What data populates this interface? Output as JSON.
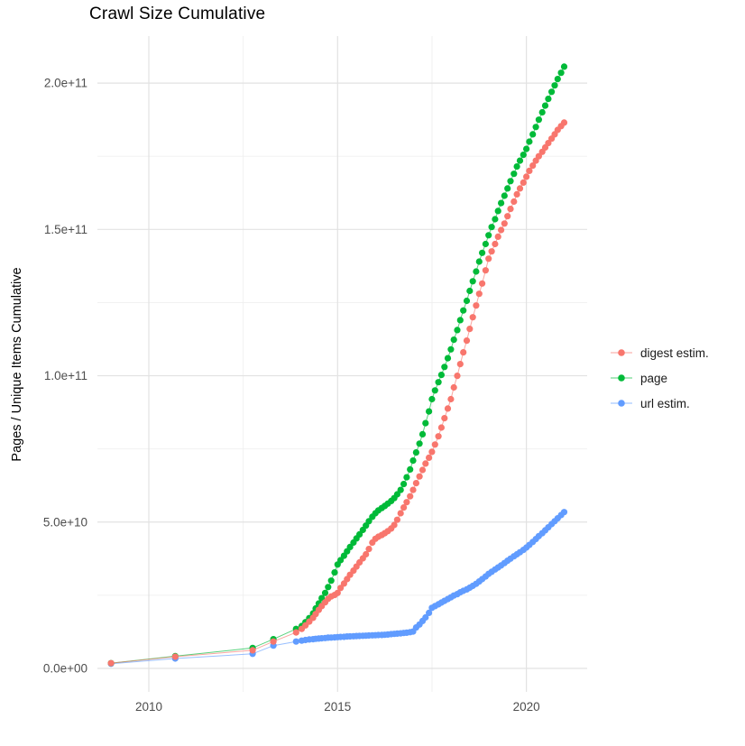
{
  "title": "Crawl Size Cumulative",
  "axes": {
    "y_label": "Pages / Unique Items Cumulative",
    "y_ticks": [
      {
        "label": "0.0e+00",
        "value_e9": 0
      },
      {
        "label": "5.0e+10",
        "value_e9": 50
      },
      {
        "label": "1.0e+11",
        "value_e9": 100
      },
      {
        "label": "1.5e+11",
        "value_e9": 150
      },
      {
        "label": "2.0e+11",
        "value_e9": 200
      }
    ],
    "x_ticks": [
      {
        "label": "2010",
        "value": 2010
      },
      {
        "label": "2015",
        "value": 2015
      },
      {
        "label": "2020",
        "value": 2020
      }
    ]
  },
  "legend": {
    "items": [
      {
        "label": "digest estim.",
        "color": "#F8766D"
      },
      {
        "label": "page",
        "color": "#00BA38"
      },
      {
        "label": "url estim.",
        "color": "#619CFF"
      }
    ]
  },
  "theme": {
    "background": "#FFFFFF",
    "grid_major": "#E2E2E2",
    "grid_minor": "#EFEFEF",
    "tick_label_color": "#4D4D4D",
    "text_color": "#000000"
  },
  "chart_data": {
    "type": "scatter",
    "title": "Crawl Size Cumulative",
    "xlabel": "",
    "ylabel": "Pages / Unique Items Cumulative",
    "value_unit": "1e9 (billions); y values below are in units of 1e9",
    "xlim": [
      2008.64,
      2021.6
    ],
    "ylim_e9": [
      -8,
      216
    ],
    "grid": true,
    "legend_position": "right",
    "series": [
      {
        "name": "digest estim.",
        "color": "#F8766D",
        "points": [
          [
            2009.0,
            1.8
          ],
          [
            2010.7,
            4.0
          ],
          [
            2012.75,
            6.2
          ],
          [
            2013.3,
            9.2
          ],
          [
            2013.9,
            12.3
          ],
          [
            2014.05,
            13.5
          ],
          [
            2014.15,
            14.7
          ],
          [
            2014.25,
            16.0
          ],
          [
            2014.35,
            17.3
          ],
          [
            2014.42,
            18.6
          ],
          [
            2014.5,
            20.0
          ],
          [
            2014.58,
            21.3
          ],
          [
            2014.67,
            22.6
          ],
          [
            2014.75,
            23.8
          ],
          [
            2014.83,
            24.6
          ],
          [
            2014.92,
            25.1
          ],
          [
            2015.0,
            25.8
          ],
          [
            2015.08,
            27.5
          ],
          [
            2015.17,
            29.0
          ],
          [
            2015.25,
            30.5
          ],
          [
            2015.33,
            32.0
          ],
          [
            2015.42,
            33.4
          ],
          [
            2015.5,
            34.8
          ],
          [
            2015.58,
            36.2
          ],
          [
            2015.67,
            37.6
          ],
          [
            2015.75,
            39.0
          ],
          [
            2015.83,
            40.8
          ],
          [
            2015.92,
            43.0
          ],
          [
            2016.0,
            44.3
          ],
          [
            2016.08,
            45.0
          ],
          [
            2016.17,
            45.6
          ],
          [
            2016.25,
            46.2
          ],
          [
            2016.33,
            46.9
          ],
          [
            2016.42,
            47.8
          ],
          [
            2016.5,
            49.0
          ],
          [
            2016.58,
            50.8
          ],
          [
            2016.67,
            53.0
          ],
          [
            2016.75,
            55.0
          ],
          [
            2016.83,
            56.8
          ],
          [
            2016.92,
            58.8
          ],
          [
            2017.0,
            61.0
          ],
          [
            2017.08,
            63.3
          ],
          [
            2017.17,
            65.6
          ],
          [
            2017.25,
            67.8
          ],
          [
            2017.33,
            70.0
          ],
          [
            2017.42,
            72.0
          ],
          [
            2017.5,
            74.0
          ],
          [
            2017.58,
            76.5
          ],
          [
            2017.67,
            79.3
          ],
          [
            2017.75,
            82.3
          ],
          [
            2017.83,
            85.5
          ],
          [
            2017.92,
            88.8
          ],
          [
            2018.0,
            92.0
          ],
          [
            2018.08,
            96.0
          ],
          [
            2018.17,
            100.0
          ],
          [
            2018.25,
            104.0
          ],
          [
            2018.33,
            108.0
          ],
          [
            2018.42,
            112.0
          ],
          [
            2018.5,
            116.0
          ],
          [
            2018.58,
            120.0
          ],
          [
            2018.67,
            124.0
          ],
          [
            2018.75,
            128.0
          ],
          [
            2018.83,
            131.5
          ],
          [
            2018.92,
            136.0
          ],
          [
            2019.0,
            140.0
          ],
          [
            2019.08,
            142.5
          ],
          [
            2019.17,
            145.0
          ],
          [
            2019.25,
            147.5
          ],
          [
            2019.33,
            149.8
          ],
          [
            2019.42,
            152.0
          ],
          [
            2019.5,
            154.5
          ],
          [
            2019.58,
            157.0
          ],
          [
            2019.67,
            159.5
          ],
          [
            2019.75,
            162.0
          ],
          [
            2019.83,
            164.0
          ],
          [
            2019.92,
            166.0
          ],
          [
            2020.0,
            168.0
          ],
          [
            2020.08,
            170.0
          ],
          [
            2020.17,
            171.8
          ],
          [
            2020.25,
            173.5
          ],
          [
            2020.33,
            175.0
          ],
          [
            2020.42,
            176.5
          ],
          [
            2020.5,
            178.0
          ],
          [
            2020.58,
            179.5
          ],
          [
            2020.67,
            181.0
          ],
          [
            2020.75,
            182.5
          ],
          [
            2020.83,
            184.0
          ],
          [
            2020.92,
            185.3
          ],
          [
            2021.0,
            186.5
          ]
        ]
      },
      {
        "name": "page",
        "color": "#00BA38",
        "points": [
          [
            2009.0,
            1.8
          ],
          [
            2010.7,
            4.2
          ],
          [
            2012.75,
            7.0
          ],
          [
            2013.3,
            10.0
          ],
          [
            2013.9,
            13.5
          ],
          [
            2014.05,
            14.5
          ],
          [
            2014.15,
            15.8
          ],
          [
            2014.25,
            17.2
          ],
          [
            2014.35,
            18.8
          ],
          [
            2014.42,
            20.5
          ],
          [
            2014.5,
            22.2
          ],
          [
            2014.58,
            24.0
          ],
          [
            2014.67,
            25.8
          ],
          [
            2014.75,
            27.8
          ],
          [
            2014.83,
            30.0
          ],
          [
            2014.92,
            32.8
          ],
          [
            2015.0,
            35.5
          ],
          [
            2015.08,
            37.0
          ],
          [
            2015.17,
            38.5
          ],
          [
            2015.25,
            40.0
          ],
          [
            2015.33,
            41.5
          ],
          [
            2015.42,
            43.0
          ],
          [
            2015.5,
            44.4
          ],
          [
            2015.58,
            45.8
          ],
          [
            2015.67,
            47.3
          ],
          [
            2015.75,
            48.8
          ],
          [
            2015.83,
            50.3
          ],
          [
            2015.92,
            51.8
          ],
          [
            2016.0,
            53.0
          ],
          [
            2016.08,
            54.0
          ],
          [
            2016.17,
            54.8
          ],
          [
            2016.25,
            55.5
          ],
          [
            2016.33,
            56.3
          ],
          [
            2016.42,
            57.2
          ],
          [
            2016.5,
            58.2
          ],
          [
            2016.58,
            59.5
          ],
          [
            2016.67,
            61.0
          ],
          [
            2016.75,
            63.0
          ],
          [
            2016.83,
            65.3
          ],
          [
            2016.92,
            68.0
          ],
          [
            2017.0,
            71.0
          ],
          [
            2017.08,
            73.8
          ],
          [
            2017.17,
            76.8
          ],
          [
            2017.25,
            80.0
          ],
          [
            2017.33,
            83.8
          ],
          [
            2017.42,
            87.8
          ],
          [
            2017.5,
            92.0
          ],
          [
            2017.58,
            95.0
          ],
          [
            2017.67,
            97.8
          ],
          [
            2017.75,
            100.3
          ],
          [
            2017.83,
            103.0
          ],
          [
            2017.92,
            106.0
          ],
          [
            2018.0,
            109.0
          ],
          [
            2018.08,
            112.3
          ],
          [
            2018.17,
            115.6
          ],
          [
            2018.25,
            119.0
          ],
          [
            2018.33,
            122.3
          ],
          [
            2018.42,
            125.6
          ],
          [
            2018.5,
            129.0
          ],
          [
            2018.58,
            132.3
          ],
          [
            2018.67,
            135.6
          ],
          [
            2018.75,
            139.0
          ],
          [
            2018.83,
            142.0
          ],
          [
            2018.92,
            145.0
          ],
          [
            2019.0,
            148.0
          ],
          [
            2019.08,
            150.8
          ],
          [
            2019.17,
            153.5
          ],
          [
            2019.25,
            156.3
          ],
          [
            2019.33,
            159.0
          ],
          [
            2019.42,
            161.5
          ],
          [
            2019.5,
            164.0
          ],
          [
            2019.58,
            166.5
          ],
          [
            2019.67,
            169.0
          ],
          [
            2019.75,
            171.5
          ],
          [
            2019.83,
            173.5
          ],
          [
            2019.92,
            175.5
          ],
          [
            2020.0,
            177.5
          ],
          [
            2020.08,
            180.0
          ],
          [
            2020.17,
            182.5
          ],
          [
            2020.25,
            185.0
          ],
          [
            2020.33,
            187.5
          ],
          [
            2020.42,
            190.0
          ],
          [
            2020.5,
            192.3
          ],
          [
            2020.58,
            194.6
          ],
          [
            2020.67,
            197.0
          ],
          [
            2020.75,
            199.2
          ],
          [
            2020.83,
            201.4
          ],
          [
            2020.92,
            203.5
          ],
          [
            2021.0,
            205.6
          ]
        ]
      },
      {
        "name": "url estim.",
        "color": "#619CFF",
        "points": [
          [
            2009.0,
            1.6
          ],
          [
            2010.7,
            3.4
          ],
          [
            2012.75,
            5.0
          ],
          [
            2013.3,
            7.8
          ],
          [
            2013.9,
            9.2
          ],
          [
            2014.05,
            9.5
          ],
          [
            2014.15,
            9.7
          ],
          [
            2014.25,
            9.9
          ],
          [
            2014.35,
            10.0
          ],
          [
            2014.42,
            10.1
          ],
          [
            2014.5,
            10.2
          ],
          [
            2014.58,
            10.3
          ],
          [
            2014.67,
            10.4
          ],
          [
            2014.75,
            10.5
          ],
          [
            2014.83,
            10.55
          ],
          [
            2014.92,
            10.6
          ],
          [
            2015.0,
            10.7
          ],
          [
            2015.08,
            10.75
          ],
          [
            2015.17,
            10.8
          ],
          [
            2015.25,
            10.9
          ],
          [
            2015.33,
            10.95
          ],
          [
            2015.42,
            11.0
          ],
          [
            2015.5,
            11.05
          ],
          [
            2015.58,
            11.1
          ],
          [
            2015.67,
            11.15
          ],
          [
            2015.75,
            11.2
          ],
          [
            2015.83,
            11.25
          ],
          [
            2015.92,
            11.3
          ],
          [
            2016.0,
            11.35
          ],
          [
            2016.08,
            11.4
          ],
          [
            2016.17,
            11.45
          ],
          [
            2016.25,
            11.5
          ],
          [
            2016.33,
            11.6
          ],
          [
            2016.42,
            11.7
          ],
          [
            2016.5,
            11.8
          ],
          [
            2016.58,
            11.9
          ],
          [
            2016.67,
            12.0
          ],
          [
            2016.75,
            12.1
          ],
          [
            2016.83,
            12.2
          ],
          [
            2016.92,
            12.4
          ],
          [
            2017.0,
            12.6
          ],
          [
            2017.08,
            14.0
          ],
          [
            2017.17,
            15.0
          ],
          [
            2017.25,
            16.2
          ],
          [
            2017.33,
            17.4
          ],
          [
            2017.42,
            19.0
          ],
          [
            2017.5,
            20.7
          ],
          [
            2017.58,
            21.3
          ],
          [
            2017.67,
            21.9
          ],
          [
            2017.75,
            22.5
          ],
          [
            2017.83,
            23.1
          ],
          [
            2017.92,
            23.7
          ],
          [
            2018.0,
            24.3
          ],
          [
            2018.08,
            24.9
          ],
          [
            2018.17,
            25.4
          ],
          [
            2018.25,
            26.0
          ],
          [
            2018.33,
            26.5
          ],
          [
            2018.42,
            27.0
          ],
          [
            2018.5,
            27.6
          ],
          [
            2018.58,
            28.2
          ],
          [
            2018.67,
            28.9
          ],
          [
            2018.75,
            29.7
          ],
          [
            2018.83,
            30.5
          ],
          [
            2018.92,
            31.4
          ],
          [
            2019.0,
            32.3
          ],
          [
            2019.08,
            33.0
          ],
          [
            2019.17,
            33.8
          ],
          [
            2019.25,
            34.5
          ],
          [
            2019.33,
            35.2
          ],
          [
            2019.42,
            36.0
          ],
          [
            2019.5,
            36.8
          ],
          [
            2019.58,
            37.5
          ],
          [
            2019.67,
            38.3
          ],
          [
            2019.75,
            39.0
          ],
          [
            2019.83,
            39.7
          ],
          [
            2019.92,
            40.5
          ],
          [
            2020.0,
            41.3
          ],
          [
            2020.08,
            42.2
          ],
          [
            2020.17,
            43.2
          ],
          [
            2020.25,
            44.2
          ],
          [
            2020.33,
            45.2
          ],
          [
            2020.42,
            46.2
          ],
          [
            2020.5,
            47.2
          ],
          [
            2020.58,
            48.2
          ],
          [
            2020.67,
            49.3
          ],
          [
            2020.75,
            50.3
          ],
          [
            2020.83,
            51.3
          ],
          [
            2020.92,
            52.4
          ],
          [
            2021.0,
            53.4
          ]
        ]
      }
    ]
  }
}
